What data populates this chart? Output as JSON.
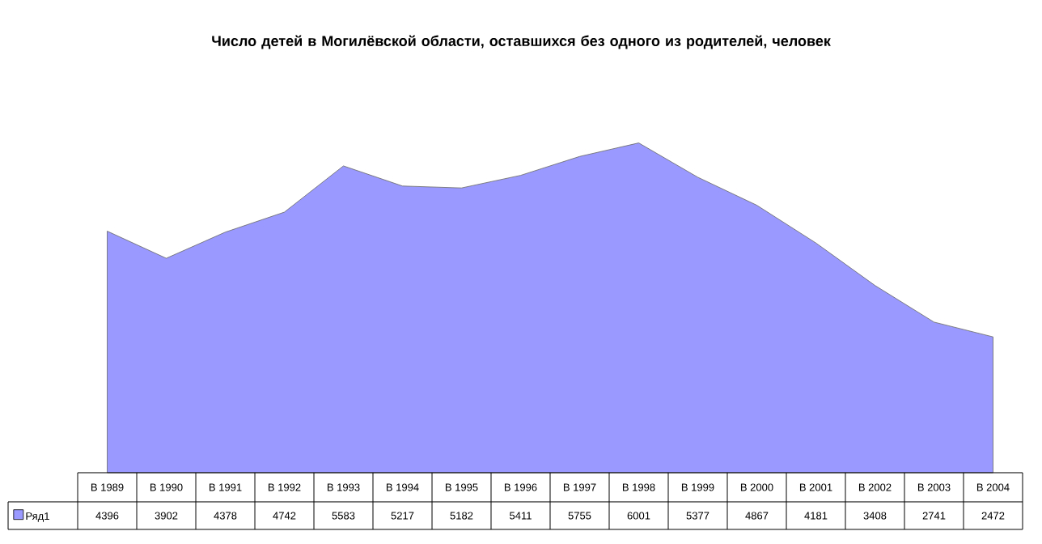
{
  "chart_data": {
    "type": "area",
    "title": "Число детей в Могилёвской области, оставшихся без одного из родителей, человек",
    "categories": [
      "В 1989",
      "В 1990",
      "В 1991",
      "В 1992",
      "В 1993",
      "В 1994",
      "В 1995",
      "В 1996",
      "В 1997",
      "В 1998",
      "В 1999",
      "В 2000",
      "В 2001",
      "В 2002",
      "В 2003",
      "В 2004"
    ],
    "series": [
      {
        "name": "Ряд1",
        "color": "#9999ff",
        "values": [
          4396,
          3902,
          4378,
          4742,
          5583,
          5217,
          5182,
          5411,
          5755,
          6001,
          5377,
          4867,
          4181,
          3408,
          2741,
          2472
        ]
      }
    ],
    "data_labels": true,
    "legend": "bottom"
  }
}
